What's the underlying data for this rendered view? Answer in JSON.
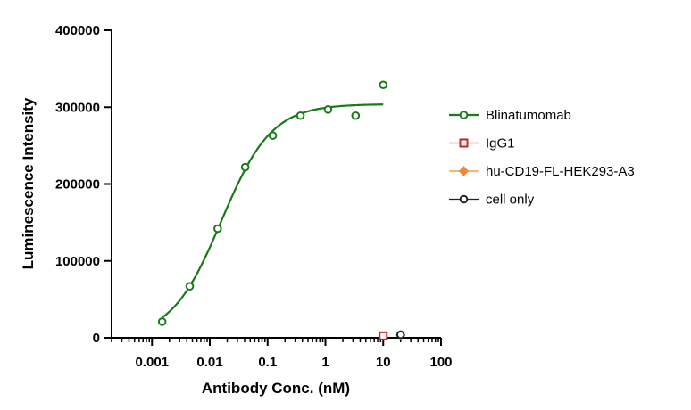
{
  "chart_data": {
    "type": "scatter",
    "title": "",
    "xlabel": "Antibody Conc. (nM)",
    "ylabel": "Luminescence Intensity",
    "x_scale": "log",
    "xlim": [
      0.0002,
      100
    ],
    "ylim": [
      0,
      400000
    ],
    "x_ticks": [
      {
        "value": 0.001,
        "label": "0.001"
      },
      {
        "value": 0.01,
        "label": "0.01"
      },
      {
        "value": 0.1,
        "label": "0.1"
      },
      {
        "value": 1,
        "label": "1"
      },
      {
        "value": 10,
        "label": "10"
      },
      {
        "value": 100,
        "label": "100"
      }
    ],
    "y_ticks": [
      {
        "value": 0,
        "label": "0"
      },
      {
        "value": 100000,
        "label": "100000"
      },
      {
        "value": 200000,
        "label": "200000"
      },
      {
        "value": 300000,
        "label": "300000"
      },
      {
        "value": 400000,
        "label": "400000"
      }
    ],
    "grid": false,
    "legend_position": "right",
    "series": [
      {
        "name": "Blinatumomab",
        "color": "#1a7a1a",
        "marker": "circle-open",
        "fit": "four-parameter-logistic",
        "fit_line": true,
        "points": [
          {
            "x": 0.0015,
            "y": 21000
          },
          {
            "x": 0.0045,
            "y": 67000
          },
          {
            "x": 0.0137,
            "y": 142000
          },
          {
            "x": 0.041,
            "y": 222000
          },
          {
            "x": 0.123,
            "y": 263000
          },
          {
            "x": 0.37,
            "y": 289000
          },
          {
            "x": 1.11,
            "y": 297000
          },
          {
            "x": 3.33,
            "y": 289000
          },
          {
            "x": 10,
            "y": 329000
          }
        ]
      },
      {
        "name": "IgG1",
        "color": "#cc2222",
        "marker": "square-open",
        "fit_line": false,
        "points": [
          {
            "x": 10,
            "y": 2500
          }
        ]
      },
      {
        "name": "hu-CD19-FL-HEK293-A3",
        "color": "#f08a30",
        "marker": "diamond-filled",
        "fit_line": false,
        "points": [
          {
            "x": 20,
            "y": 3500
          }
        ]
      },
      {
        "name": "cell only",
        "color": "#222222",
        "marker": "circle-open",
        "fit_line": false,
        "points": [
          {
            "x": 20,
            "y": 4000
          }
        ]
      }
    ]
  }
}
